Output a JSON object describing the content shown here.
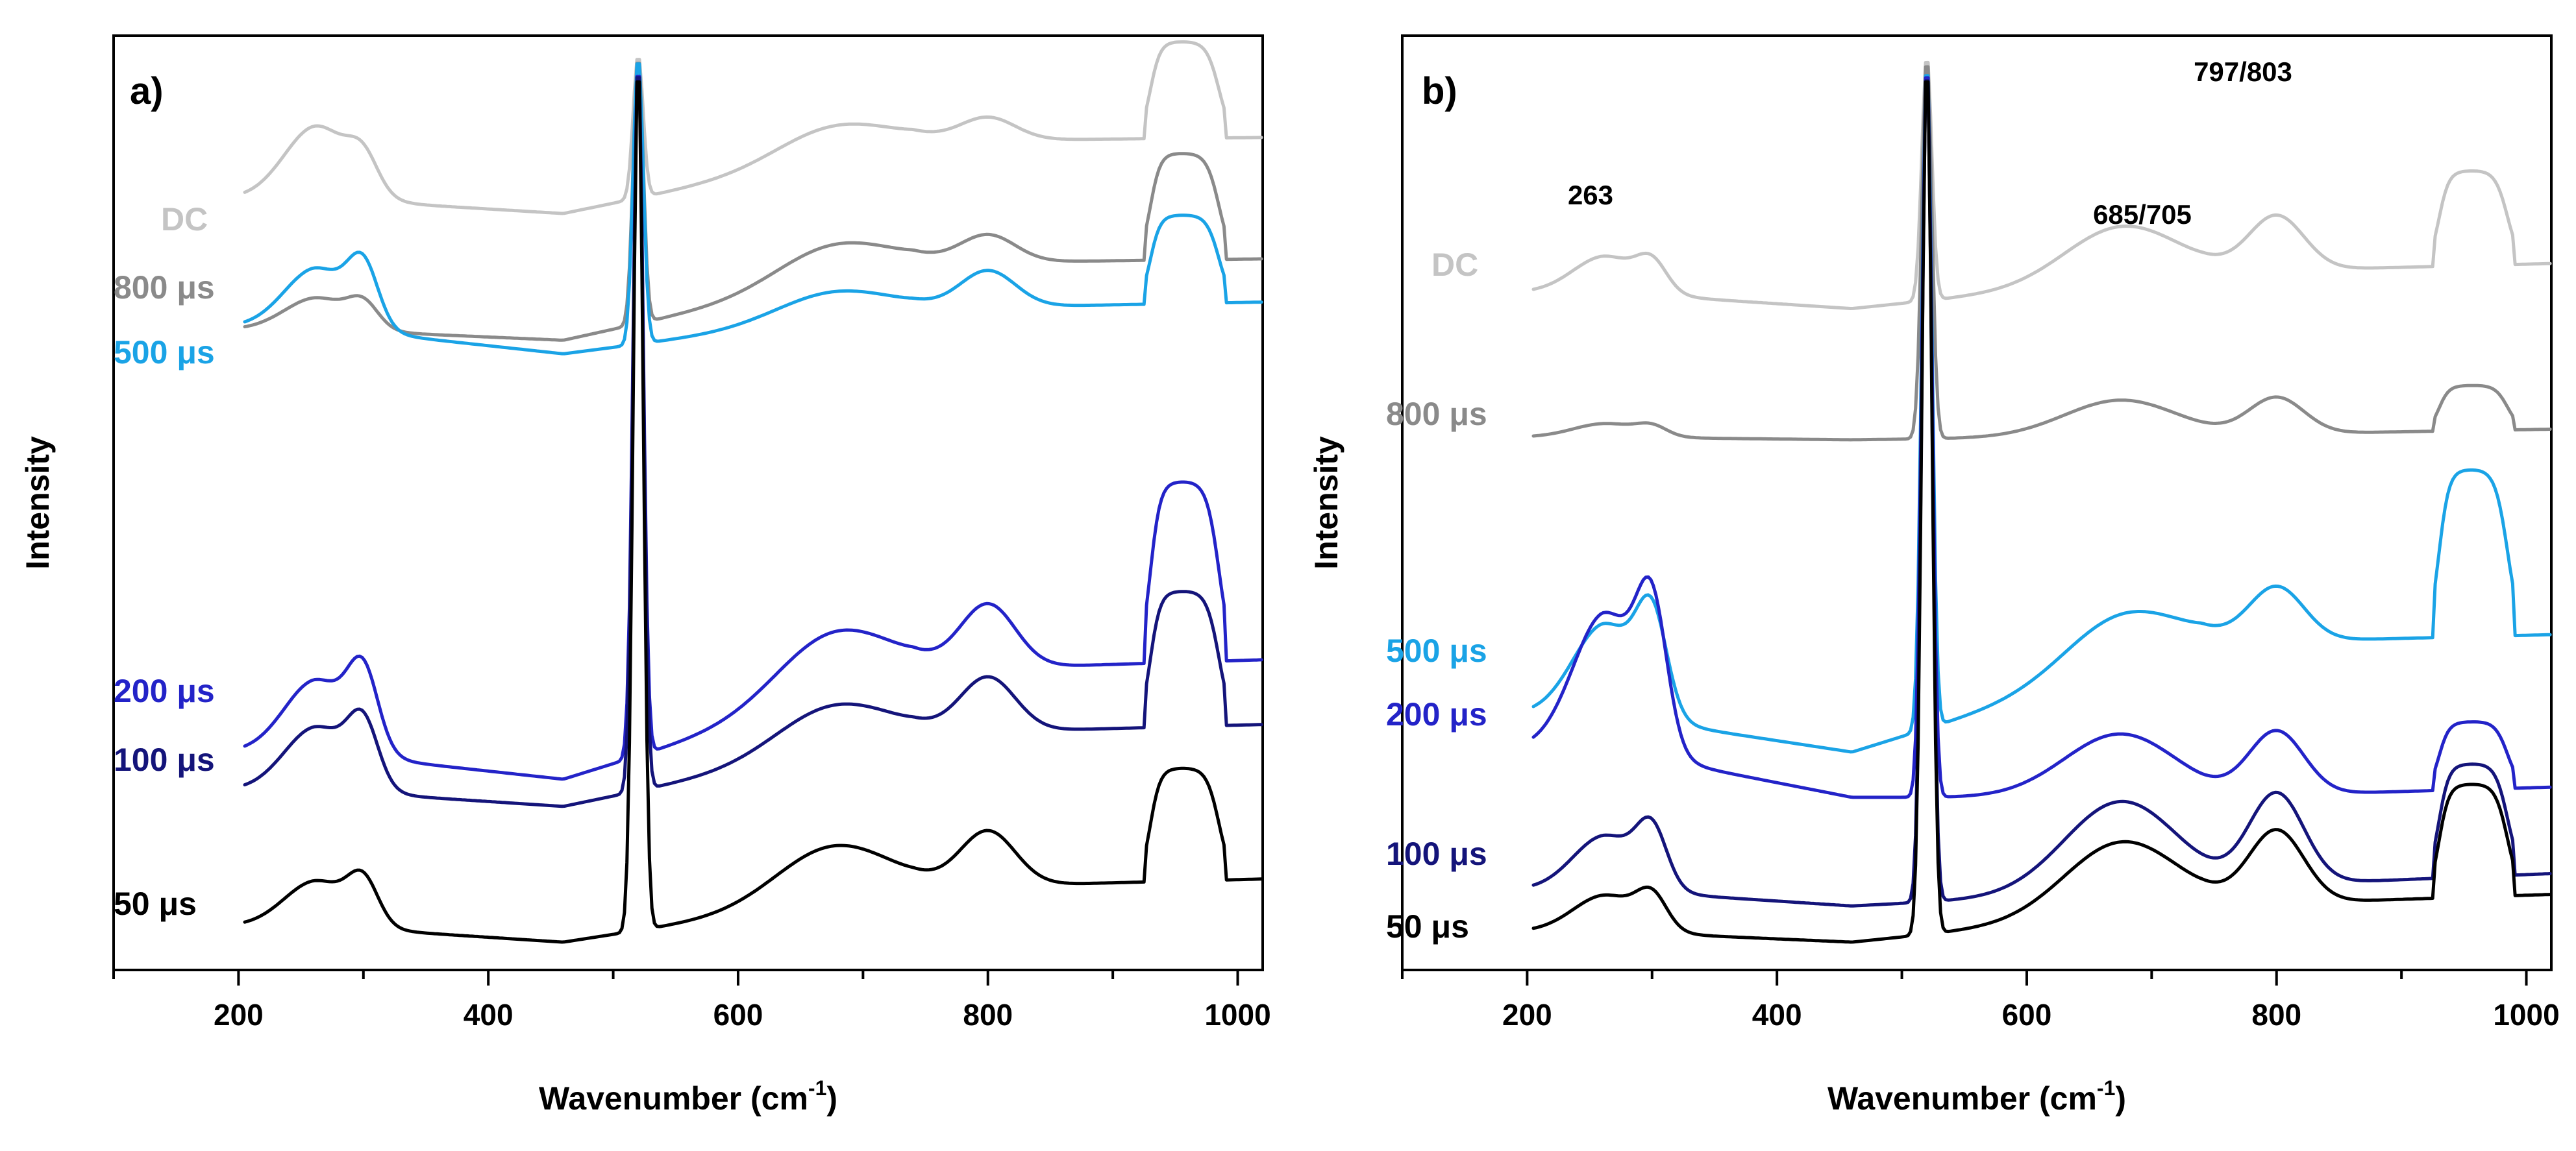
{
  "colors": {
    "DC": "#c4c4c4",
    "800us": "#8a8a8a",
    "500us": "#1aa3e6",
    "200us": "#2323c8",
    "100us": "#14147a",
    "50us": "#000000"
  },
  "chart_data": [
    {
      "type": "line",
      "panel": "a)",
      "xlabel": "Wavenumber (cm",
      "xlabel_sup": "-1",
      "xlabel_close": ")",
      "ylabel": "Intensity",
      "xlim": [
        100,
        1020
      ],
      "ylim": [
        0,
        100
      ],
      "xticks": [
        200,
        400,
        600,
        800,
        1000
      ],
      "grid": false,
      "series": [
        {
          "name": "DC",
          "label": "DC",
          "color_key": "DC",
          "y": [
            90.5,
            86,
            85.3,
            82.5,
            94,
            90.5,
            93,
            93.2,
            100
          ]
        },
        {
          "name": "800 µs",
          "label": "800 μs",
          "color_key": "800us",
          "y": [
            72,
            71,
            70.5,
            68.5,
            81,
            77,
            80,
            80.3,
            100
          ]
        },
        {
          "name": "500 µs",
          "label": "500 μs",
          "color_key": "500us",
          "y": [
            73.5,
            73.2,
            72,
            67,
            75,
            72,
            76,
            76.8,
            100
          ]
        },
        {
          "name": "200 µs",
          "label": "200 μs",
          "color_key": "200us",
          "y": [
            28,
            28,
            25,
            20,
            39,
            32,
            39,
            40,
            100
          ]
        },
        {
          "name": "100 µs",
          "label": "100 μs",
          "color_key": "100us",
          "y": [
            24,
            23.5,
            20,
            17,
            30,
            25,
            31,
            32,
            100
          ]
        },
        {
          "name": "50 µs",
          "label": "50 μs",
          "color_key": "50us",
          "y": [
            7,
            6.5,
            5,
            2,
            14,
            8,
            14,
            14.5,
            100
          ]
        }
      ]
    },
    {
      "type": "line",
      "panel": "b)",
      "xlabel": "Wavenumber (cm",
      "xlabel_sup": "-1",
      "xlabel_close": ")",
      "ylabel": "Intensity",
      "xlim": [
        100,
        1020
      ],
      "ylim": [
        0,
        100
      ],
      "xticks": [
        200,
        400,
        600,
        800,
        1000
      ],
      "grid": false,
      "annotations": [
        {
          "text": "263",
          "x": 263
        },
        {
          "text": "685/705",
          "x": 695
        },
        {
          "text": "797/803",
          "x": 800
        }
      ],
      "series": [
        {
          "name": "DC",
          "label": "DC",
          "color_key": "DC",
          "y": [
            76,
            75,
            75,
            72,
            82,
            76,
            82,
            82.5,
            100
          ]
        },
        {
          "name": "800 µs",
          "label": "800 μs",
          "color_key": "800us",
          "y": [
            59,
            58.5,
            58,
            57.5,
            62,
            58,
            62,
            62.5,
            100
          ]
        },
        {
          "name": "500 µs",
          "label": "500 μs",
          "color_key": "500us",
          "y": [
            33,
            33,
            30,
            23,
            41,
            35,
            41,
            41.5,
            100
          ]
        },
        {
          "name": "200 µs",
          "label": "200 μs",
          "color_key": "200us",
          "y": [
            33,
            32,
            27,
            18,
            25,
            18,
            25,
            25.5,
            100
          ]
        },
        {
          "name": "100 µs",
          "label": "100 μs",
          "color_key": "100us",
          "y": [
            12,
            12,
            9,
            6,
            18,
            8,
            18,
            18.5,
            100
          ]
        },
        {
          "name": "50 µs",
          "label": "50 μs",
          "color_key": "50us",
          "y": [
            6,
            5.5,
            4,
            2,
            14,
            6,
            14,
            14.5,
            100
          ]
        }
      ]
    }
  ]
}
